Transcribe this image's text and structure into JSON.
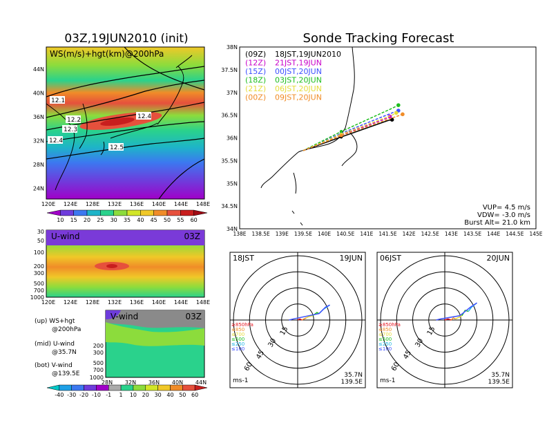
{
  "left_title": "03Z,19JUN2010 (init)",
  "right_title": "Sonde Tracking Forecast",
  "top_map": {
    "label": "WS(m/s)+hgt(km)@200hPa",
    "lat_ticks": [
      "44N",
      "40N",
      "36N",
      "32N",
      "28N",
      "24N"
    ],
    "lon_ticks": [
      "120E",
      "124E",
      "128E",
      "132E",
      "136E",
      "140E",
      "144E",
      "148E"
    ],
    "contour_labels": [
      "12.1",
      "12.2",
      "12.3",
      "12.4",
      "12.4",
      "12.5"
    ]
  },
  "ws_colorbar": {
    "ticks": [
      "10",
      "15",
      "20",
      "25",
      "30",
      "35",
      "40",
      "45",
      "50",
      "55",
      "60"
    ],
    "colors": [
      "#a000c8",
      "#6e3cdc",
      "#3c78f0",
      "#1eb4c8",
      "#2ad28c",
      "#8cdc3c",
      "#d2e628",
      "#f0c828",
      "#f08c28",
      "#e6503c",
      "#c81e1e",
      "#a00a14"
    ]
  },
  "u_section": {
    "label": "U-wind",
    "time": "03Z",
    "y_ticks": [
      "30",
      "50",
      "100",
      "200",
      "300",
      "500",
      "700",
      "1000"
    ],
    "x_ticks": [
      "120E",
      "124E",
      "128E",
      "132E",
      "136E",
      "140E",
      "144E",
      "148E"
    ]
  },
  "v_section": {
    "label": "V-wind",
    "time": "03Z",
    "y_ticks": [
      "200",
      "300",
      "500",
      "700",
      "1000"
    ],
    "x_ticks": [
      "28N",
      "32N",
      "36N",
      "40N",
      "44N"
    ]
  },
  "notes": [
    {
      "line1": "(up) WS+hgt",
      "line2": "@200hPa"
    },
    {
      "line1": "(mid) U-wind",
      "line2": "@35.7N"
    },
    {
      "line1": "(bot) V-wind",
      "line2": "@139.5E"
    }
  ],
  "uv_colorbar": {
    "ticks": [
      "-40",
      "-30",
      "-20",
      "-10",
      "-1",
      "1",
      "10",
      "20",
      "30",
      "40",
      "50",
      "60"
    ],
    "colors": [
      "#00c8c8",
      "#1ea0e6",
      "#3c78f0",
      "#6e3cdc",
      "#a000c8",
      "#aaaaaa",
      "#2ad28c",
      "#8cdc3c",
      "#d2e628",
      "#f0c828",
      "#f08c28",
      "#e6503c",
      "#c81e1e"
    ]
  },
  "track_map": {
    "lat_ticks": [
      "38N",
      "37.5N",
      "37N",
      "36.5N",
      "36N",
      "35.5N",
      "35N",
      "34.5N",
      "34N"
    ],
    "lon_ticks": [
      "138E",
      "138.5E",
      "139E",
      "139.5E",
      "140E",
      "140.5E",
      "141E",
      "141.5E",
      "142E",
      "142.5E",
      "143E",
      "143.5E",
      "144E",
      "144.5E",
      "145E"
    ],
    "legend": [
      {
        "code": "(09Z)",
        "time": "18JST,19JUN2010",
        "color": "#000000"
      },
      {
        "code": "(12Z)",
        "time": "21JST,19JUN",
        "color": "#c800c8"
      },
      {
        "code": "(15Z)",
        "time": "00JST,20JUN",
        "color": "#3c50ff"
      },
      {
        "code": "(18Z)",
        "time": "03JST,20JUN",
        "color": "#1ebe1e"
      },
      {
        "code": "(21Z)",
        "time": "06JST,20JUN",
        "color": "#e6dc3c"
      },
      {
        "code": "(00Z)",
        "time": "09JST,20JUN",
        "color": "#f08c28"
      }
    ],
    "params": [
      "VUP= 4.5 m/s",
      "VDW= -3.0 m/s",
      "Burst Alt= 21.0 km"
    ]
  },
  "chart_data": [
    {
      "type": "line",
      "title": "Sonde Tracking Forecast",
      "xlim": [
        138,
        145
      ],
      "ylim": [
        34,
        38
      ],
      "launch": [
        139.5,
        35.72
      ],
      "series": [
        {
          "name": "(09Z) 18JST,19JUN2010",
          "x": [
            139.5,
            140.4,
            141.5,
            141.6
          ],
          "y": [
            35.72,
            36.02,
            36.38,
            36.4
          ]
        },
        {
          "name": "(12Z) 21JST,19JUN",
          "x": [
            139.5,
            140.4,
            141.5,
            141.55
          ],
          "y": [
            35.72,
            36.06,
            36.44,
            36.47
          ]
        },
        {
          "name": "(15Z) 00JST,20JUN",
          "x": [
            139.5,
            140.4,
            141.6,
            141.75
          ],
          "y": [
            35.72,
            36.1,
            36.55,
            36.6
          ]
        },
        {
          "name": "(18Z) 03JST,20JUN",
          "x": [
            139.5,
            140.4,
            141.6,
            141.75
          ],
          "y": [
            35.72,
            36.14,
            36.65,
            36.72
          ]
        },
        {
          "name": "(21Z) 06JST,20JUN",
          "x": [
            139.5,
            140.4,
            141.6,
            141.7
          ],
          "y": [
            35.72,
            36.08,
            36.5,
            36.55
          ]
        },
        {
          "name": "(00Z) 09JST,20JUN",
          "x": [
            139.5,
            140.4,
            141.7,
            141.85
          ],
          "y": [
            35.72,
            36.05,
            36.47,
            36.52
          ]
        }
      ]
    },
    {
      "type": "line",
      "header_left": "18JST",
      "header_right": "19JUN",
      "rings": [
        "15",
        "30",
        "45",
        "60"
      ],
      "location": [
        "35.7N",
        "139.5E"
      ],
      "unit": "ms-1",
      "legend": [
        {
          "label": "≥850hPa",
          "color": "#e6141e"
        },
        {
          "label": "≤850",
          "color": "#f08c28"
        },
        {
          "label": "≤700",
          "color": "#e6dc3c"
        },
        {
          "label": "≤500",
          "color": "#1ebe1e"
        },
        {
          "label": "≤250",
          "color": "#1eb4e6"
        },
        {
          "label": "≤100",
          "color": "#3c50ff"
        }
      ],
      "series": [
        {
          "name": "≥850hPa",
          "u": [
            0,
            2,
            4
          ],
          "v": [
            0,
            1,
            0
          ]
        },
        {
          "name": "≤850",
          "u": [
            4,
            6,
            8
          ],
          "v": [
            0,
            1,
            2
          ]
        },
        {
          "name": "≤700",
          "u": [
            8,
            10,
            14
          ],
          "v": [
            2,
            3,
            4
          ]
        },
        {
          "name": "≤500",
          "u": [
            14,
            18,
            20
          ],
          "v": [
            4,
            7,
            6
          ]
        },
        {
          "name": "≤250",
          "u": [
            20,
            24,
            30
          ],
          "v": [
            6,
            10,
            14
          ]
        },
        {
          "name": "≤100",
          "u": [
            30,
            26,
            20,
            -4,
            -8
          ],
          "v": [
            14,
            12,
            6,
            1,
            0
          ]
        }
      ]
    },
    {
      "type": "line",
      "header_left": "06JST",
      "header_right": "20JUN",
      "rings": [
        "15",
        "30",
        "45",
        "60"
      ],
      "location": [
        "35.7N",
        "139.5E"
      ],
      "unit": "ms-1",
      "legend": [
        {
          "label": "≥850hPa",
          "color": "#e6141e"
        },
        {
          "label": "≤850",
          "color": "#f08c28"
        },
        {
          "label": "≤700",
          "color": "#e6dc3c"
        },
        {
          "label": "≤500",
          "color": "#1ebe1e"
        },
        {
          "label": "≤250",
          "color": "#1eb4e6"
        },
        {
          "label": "≤100",
          "color": "#3c50ff"
        }
      ],
      "series": [
        {
          "name": "≥850hPa",
          "u": [
            0,
            3,
            6
          ],
          "v": [
            0,
            1,
            0
          ]
        },
        {
          "name": "≤850",
          "u": [
            6,
            8,
            10
          ],
          "v": [
            0,
            2,
            1
          ]
        },
        {
          "name": "≤700",
          "u": [
            10,
            12,
            16
          ],
          "v": [
            1,
            2,
            4
          ]
        },
        {
          "name": "≤500",
          "u": [
            16,
            19,
            22
          ],
          "v": [
            4,
            9,
            8
          ]
        },
        {
          "name": "≤250",
          "u": [
            22,
            25,
            30
          ],
          "v": [
            8,
            12,
            16
          ]
        },
        {
          "name": "≤100",
          "u": [
            30,
            24,
            14,
            -4,
            -8
          ],
          "v": [
            16,
            12,
            4,
            1,
            0
          ]
        }
      ]
    }
  ]
}
